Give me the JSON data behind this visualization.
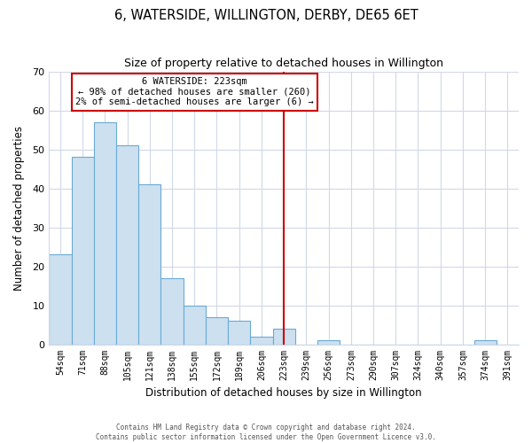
{
  "title": "6, WATERSIDE, WILLINGTON, DERBY, DE65 6ET",
  "subtitle": "Size of property relative to detached houses in Willington",
  "xlabel": "Distribution of detached houses by size in Willington",
  "ylabel": "Number of detached properties",
  "bar_labels": [
    "54sqm",
    "71sqm",
    "88sqm",
    "105sqm",
    "121sqm",
    "138sqm",
    "155sqm",
    "172sqm",
    "189sqm",
    "206sqm",
    "223sqm",
    "239sqm",
    "256sqm",
    "273sqm",
    "290sqm",
    "307sqm",
    "324sqm",
    "340sqm",
    "357sqm",
    "374sqm",
    "391sqm"
  ],
  "bar_values": [
    23,
    48,
    57,
    51,
    41,
    17,
    10,
    7,
    6,
    2,
    4,
    0,
    1,
    0,
    0,
    0,
    0,
    0,
    0,
    1,
    0
  ],
  "bar_color": "#cce0f0",
  "bar_edge_color": "#6aaad4",
  "highlight_index": 10,
  "highlight_line_color": "#cc0000",
  "annotation_line1": "6 WATERSIDE: 223sqm",
  "annotation_line2": "← 98% of detached houses are smaller (260)",
  "annotation_line3": "2% of semi-detached houses are larger (6) →",
  "annotation_box_color": "#ffffff",
  "annotation_box_edge": "#cc0000",
  "ylim": [
    0,
    70
  ],
  "yticks": [
    0,
    10,
    20,
    30,
    40,
    50,
    60,
    70
  ],
  "footer1": "Contains HM Land Registry data © Crown copyright and database right 2024.",
  "footer2": "Contains public sector information licensed under the Open Government Licence v3.0.",
  "bg_color": "#ffffff",
  "grid_color": "#d0d8e8"
}
